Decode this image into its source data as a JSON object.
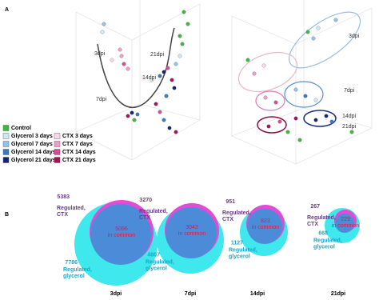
{
  "panel_a": {
    "label": "A",
    "legend": [
      {
        "name": "Control",
        "color": "#3cb93c"
      },
      {
        "name": "Glycerol 3 days",
        "color": "#cfe6f7"
      },
      {
        "name": "Glycerol 7 days",
        "color": "#8fc3ea"
      },
      {
        "name": "Glycerol 14 days",
        "color": "#3b78c2"
      },
      {
        "name": "Glycerol 21 days",
        "color": "#16236e"
      },
      {
        "name": "CTX 3 days",
        "color": "#f7d7ea"
      },
      {
        "name": "CTX 7 days",
        "color": "#ef9cc8"
      },
      {
        "name": "CTX 14 days",
        "color": "#d94a98"
      },
      {
        "name": "CTX 21 days",
        "color": "#a3125a"
      }
    ],
    "left_annotations": [
      "3dpi",
      "7dpi",
      "14dpi",
      "21dpi"
    ],
    "right_annotations": [
      "3dpi",
      "7dpi",
      "14dpi",
      "21dpi"
    ]
  },
  "panel_b": {
    "label": "B",
    "venns": [
      {
        "time": "3dpi",
        "ctx": 5383,
        "ctx_label": [
          "Regulated,",
          "CTX"
        ],
        "common": 5096,
        "common_label": "in common",
        "glycerol": 7786,
        "glycerol_label": [
          "Regulated,",
          "glycerol"
        ]
      },
      {
        "time": "7dpi",
        "ctx": 3270,
        "ctx_label": [
          "Regulated,",
          "CTX"
        ],
        "common": 3043,
        "common_label": "in common",
        "glycerol": 4807,
        "glycerol_label": [
          "Regulated,",
          "glycerol"
        ]
      },
      {
        "time": "14dpi",
        "ctx": 951,
        "ctx_label": [
          "Regulated,",
          "CTX"
        ],
        "common": 823,
        "common_label": "in common",
        "glycerol": 1127,
        "glycerol_label": [
          "Regulated,",
          "glycerol"
        ]
      },
      {
        "time": "21dpi",
        "ctx": 267,
        "ctx_label": [
          "Regulated,",
          "CTX"
        ],
        "common": 229,
        "common_label": "in common",
        "glycerol": 668,
        "glycerol_label": [
          "Regulated,",
          "glycerol"
        ]
      }
    ]
  }
}
